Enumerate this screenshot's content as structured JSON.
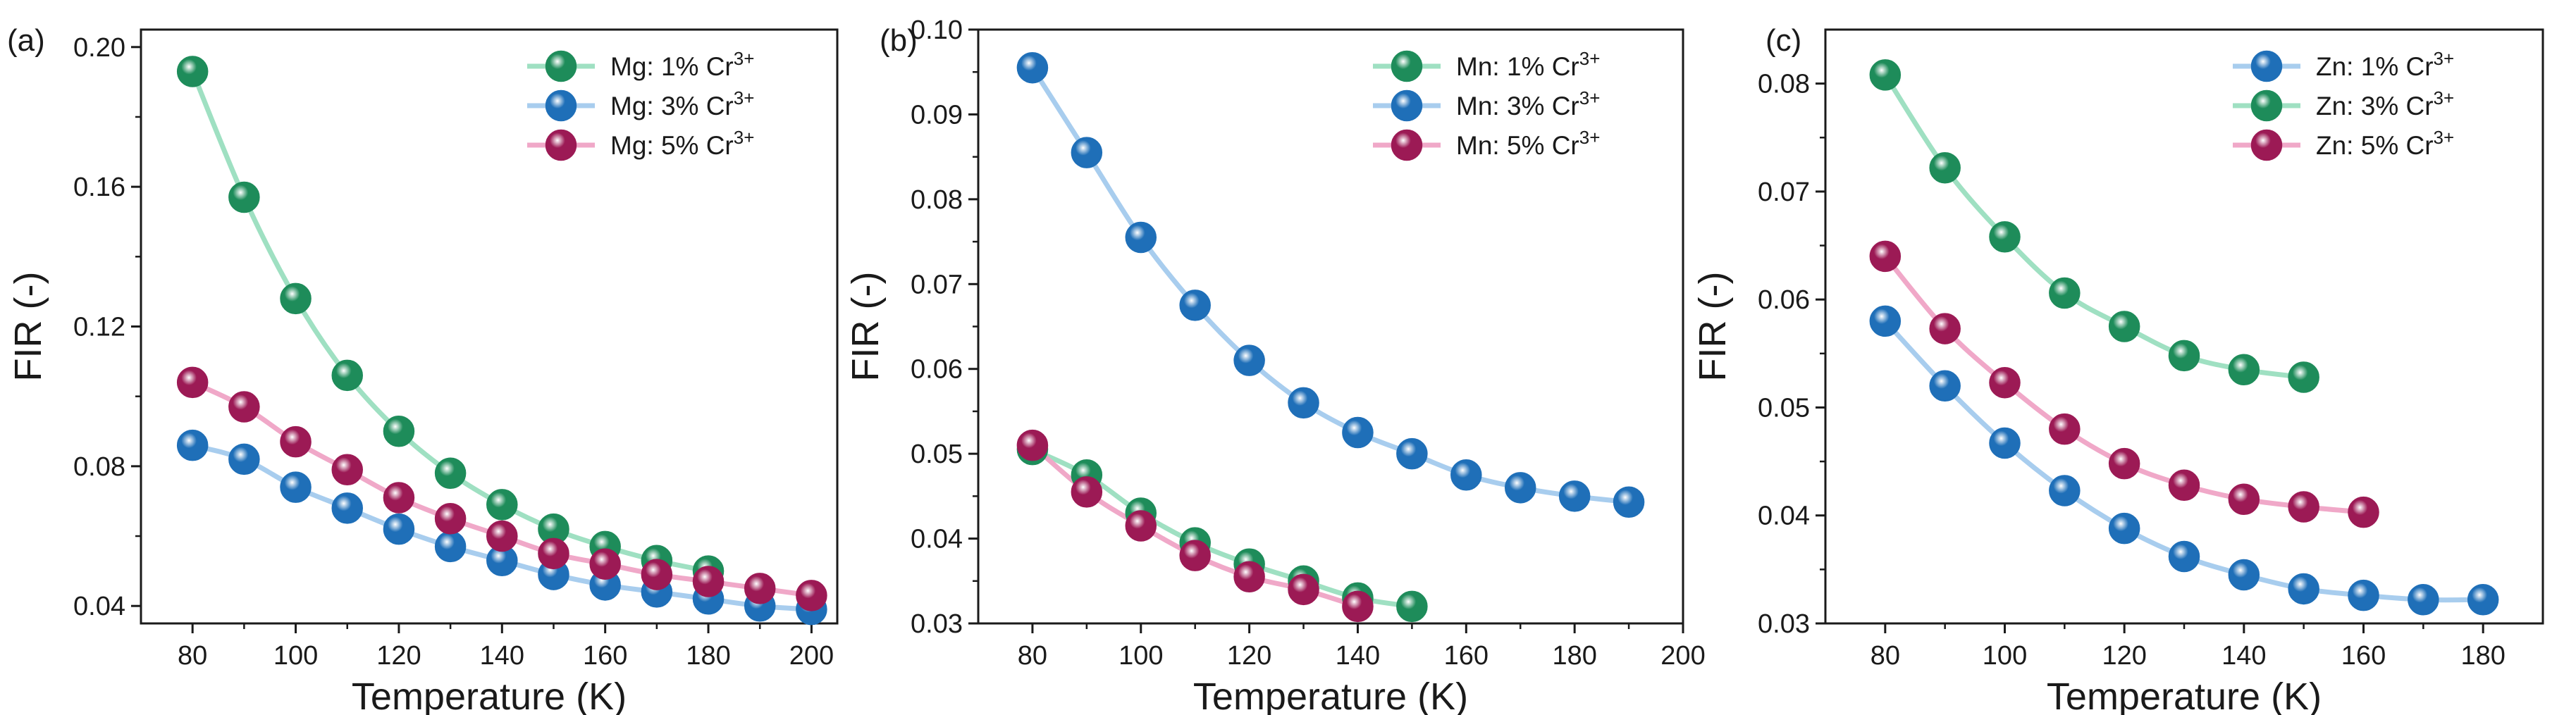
{
  "chart_data": [
    {
      "type": "line",
      "panel_label": "(a)",
      "xlabel": "Temperature (K)",
      "ylabel": "FIR (-)",
      "xlim": [
        70,
        205
      ],
      "ylim": [
        0.035,
        0.205
      ],
      "xticks": [
        80,
        100,
        120,
        140,
        160,
        180,
        200
      ],
      "yticks": [
        0.04,
        0.08,
        0.12,
        0.16,
        0.2
      ],
      "ytick_labels": [
        "0.04",
        "0.08",
        "0.12",
        "0.16",
        "0.20"
      ],
      "legend_position": "top-right",
      "series": [
        {
          "name": "Mg: 1% Cr",
          "superscript": "3+",
          "color": "#1e8c5a",
          "line_color": "#9fe0c2",
          "x": [
            80,
            90,
            100,
            110,
            120,
            130,
            140,
            150,
            160,
            170,
            180
          ],
          "values": [
            0.193,
            0.157,
            0.128,
            0.106,
            0.09,
            0.078,
            0.069,
            0.062,
            0.057,
            0.053,
            0.05
          ]
        },
        {
          "name": "Mg: 3% Cr",
          "superscript": "3+",
          "color": "#1f6fb8",
          "line_color": "#a8cdee",
          "x": [
            80,
            90,
            100,
            110,
            120,
            130,
            140,
            150,
            160,
            170,
            180,
            190,
            200
          ],
          "values": [
            0.086,
            0.082,
            0.074,
            0.068,
            0.062,
            0.057,
            0.053,
            0.049,
            0.046,
            0.044,
            0.042,
            0.04,
            0.039
          ]
        },
        {
          "name": "Mg: 5% Cr",
          "superscript": "3+",
          "color": "#9c1a55",
          "line_color": "#f0a8c8",
          "x": [
            80,
            90,
            100,
            110,
            120,
            130,
            140,
            150,
            160,
            170,
            180,
            190,
            200
          ],
          "values": [
            0.104,
            0.097,
            0.087,
            0.079,
            0.071,
            0.065,
            0.06,
            0.055,
            0.052,
            0.049,
            0.047,
            0.045,
            0.043
          ]
        }
      ]
    },
    {
      "type": "line",
      "panel_label": "(b)",
      "xlabel": "Temperature (K)",
      "ylabel": "FIR (-)",
      "xlim": [
        70,
        200
      ],
      "ylim": [
        0.03,
        0.1
      ],
      "xticks": [
        80,
        100,
        120,
        140,
        160,
        180,
        200
      ],
      "yticks": [
        0.03,
        0.04,
        0.05,
        0.06,
        0.07,
        0.08,
        0.09,
        0.1
      ],
      "ytick_labels": [
        "0.03",
        "0.04",
        "0.05",
        "0.06",
        "0.07",
        "0.08",
        "0.09",
        "0.10"
      ],
      "legend_position": "top-right",
      "series": [
        {
          "name": "Mn: 1% Cr",
          "superscript": "3+",
          "color": "#1e8c5a",
          "line_color": "#9fe0c2",
          "x": [
            80,
            90,
            100,
            110,
            120,
            130,
            140,
            150
          ],
          "values": [
            0.0505,
            0.0475,
            0.043,
            0.0395,
            0.037,
            0.035,
            0.033,
            0.032
          ]
        },
        {
          "name": "Mn: 3% Cr",
          "superscript": "3+",
          "color": "#1f6fb8",
          "line_color": "#a8cdee",
          "x": [
            80,
            90,
            100,
            110,
            120,
            130,
            140,
            150,
            160,
            170,
            180,
            190
          ],
          "values": [
            0.0955,
            0.0855,
            0.0755,
            0.0675,
            0.061,
            0.056,
            0.0525,
            0.05,
            0.0475,
            0.046,
            0.045,
            0.0443
          ]
        },
        {
          "name": "Mn: 5% Cr",
          "superscript": "3+",
          "color": "#9c1a55",
          "line_color": "#f0a8c8",
          "x": [
            80,
            90,
            100,
            110,
            120,
            130,
            140
          ],
          "values": [
            0.051,
            0.0455,
            0.0415,
            0.038,
            0.0355,
            0.034,
            0.032
          ]
        }
      ]
    },
    {
      "type": "line",
      "panel_label": "(c)",
      "xlabel": "Temperature (K)",
      "ylabel": "FIR (-)",
      "xlim": [
        70,
        190
      ],
      "ylim": [
        0.03,
        0.085
      ],
      "xticks": [
        80,
        100,
        120,
        140,
        160,
        180
      ],
      "yticks": [
        0.03,
        0.04,
        0.05,
        0.06,
        0.07,
        0.08
      ],
      "ytick_labels": [
        "0.03",
        "0.04",
        "0.05",
        "0.06",
        "0.07",
        "0.08"
      ],
      "legend_position": "top-right",
      "series": [
        {
          "name": "Zn: 1% Cr",
          "superscript": "3+",
          "color": "#1f6fb8",
          "line_color": "#a8cdee",
          "x": [
            80,
            90,
            100,
            110,
            120,
            130,
            140,
            150,
            160,
            170,
            180
          ],
          "values": [
            0.058,
            0.052,
            0.0467,
            0.0423,
            0.0388,
            0.0362,
            0.0345,
            0.0332,
            0.0326,
            0.0322,
            0.0322
          ]
        },
        {
          "name": "Zn: 3% Cr",
          "superscript": "3+",
          "color": "#1e8c5a",
          "line_color": "#9fe0c2",
          "x": [
            80,
            90,
            100,
            110,
            120,
            130,
            140,
            150
          ],
          "values": [
            0.0808,
            0.0722,
            0.0658,
            0.0606,
            0.0575,
            0.0548,
            0.0535,
            0.0528
          ]
        },
        {
          "name": "Zn: 5% Cr",
          "superscript": "3+",
          "color": "#9c1a55",
          "line_color": "#f0a8c8",
          "x": [
            80,
            90,
            100,
            110,
            120,
            130,
            140,
            150,
            160
          ],
          "values": [
            0.064,
            0.0573,
            0.0523,
            0.048,
            0.0448,
            0.0428,
            0.0415,
            0.0408,
            0.0403
          ]
        }
      ]
    }
  ]
}
